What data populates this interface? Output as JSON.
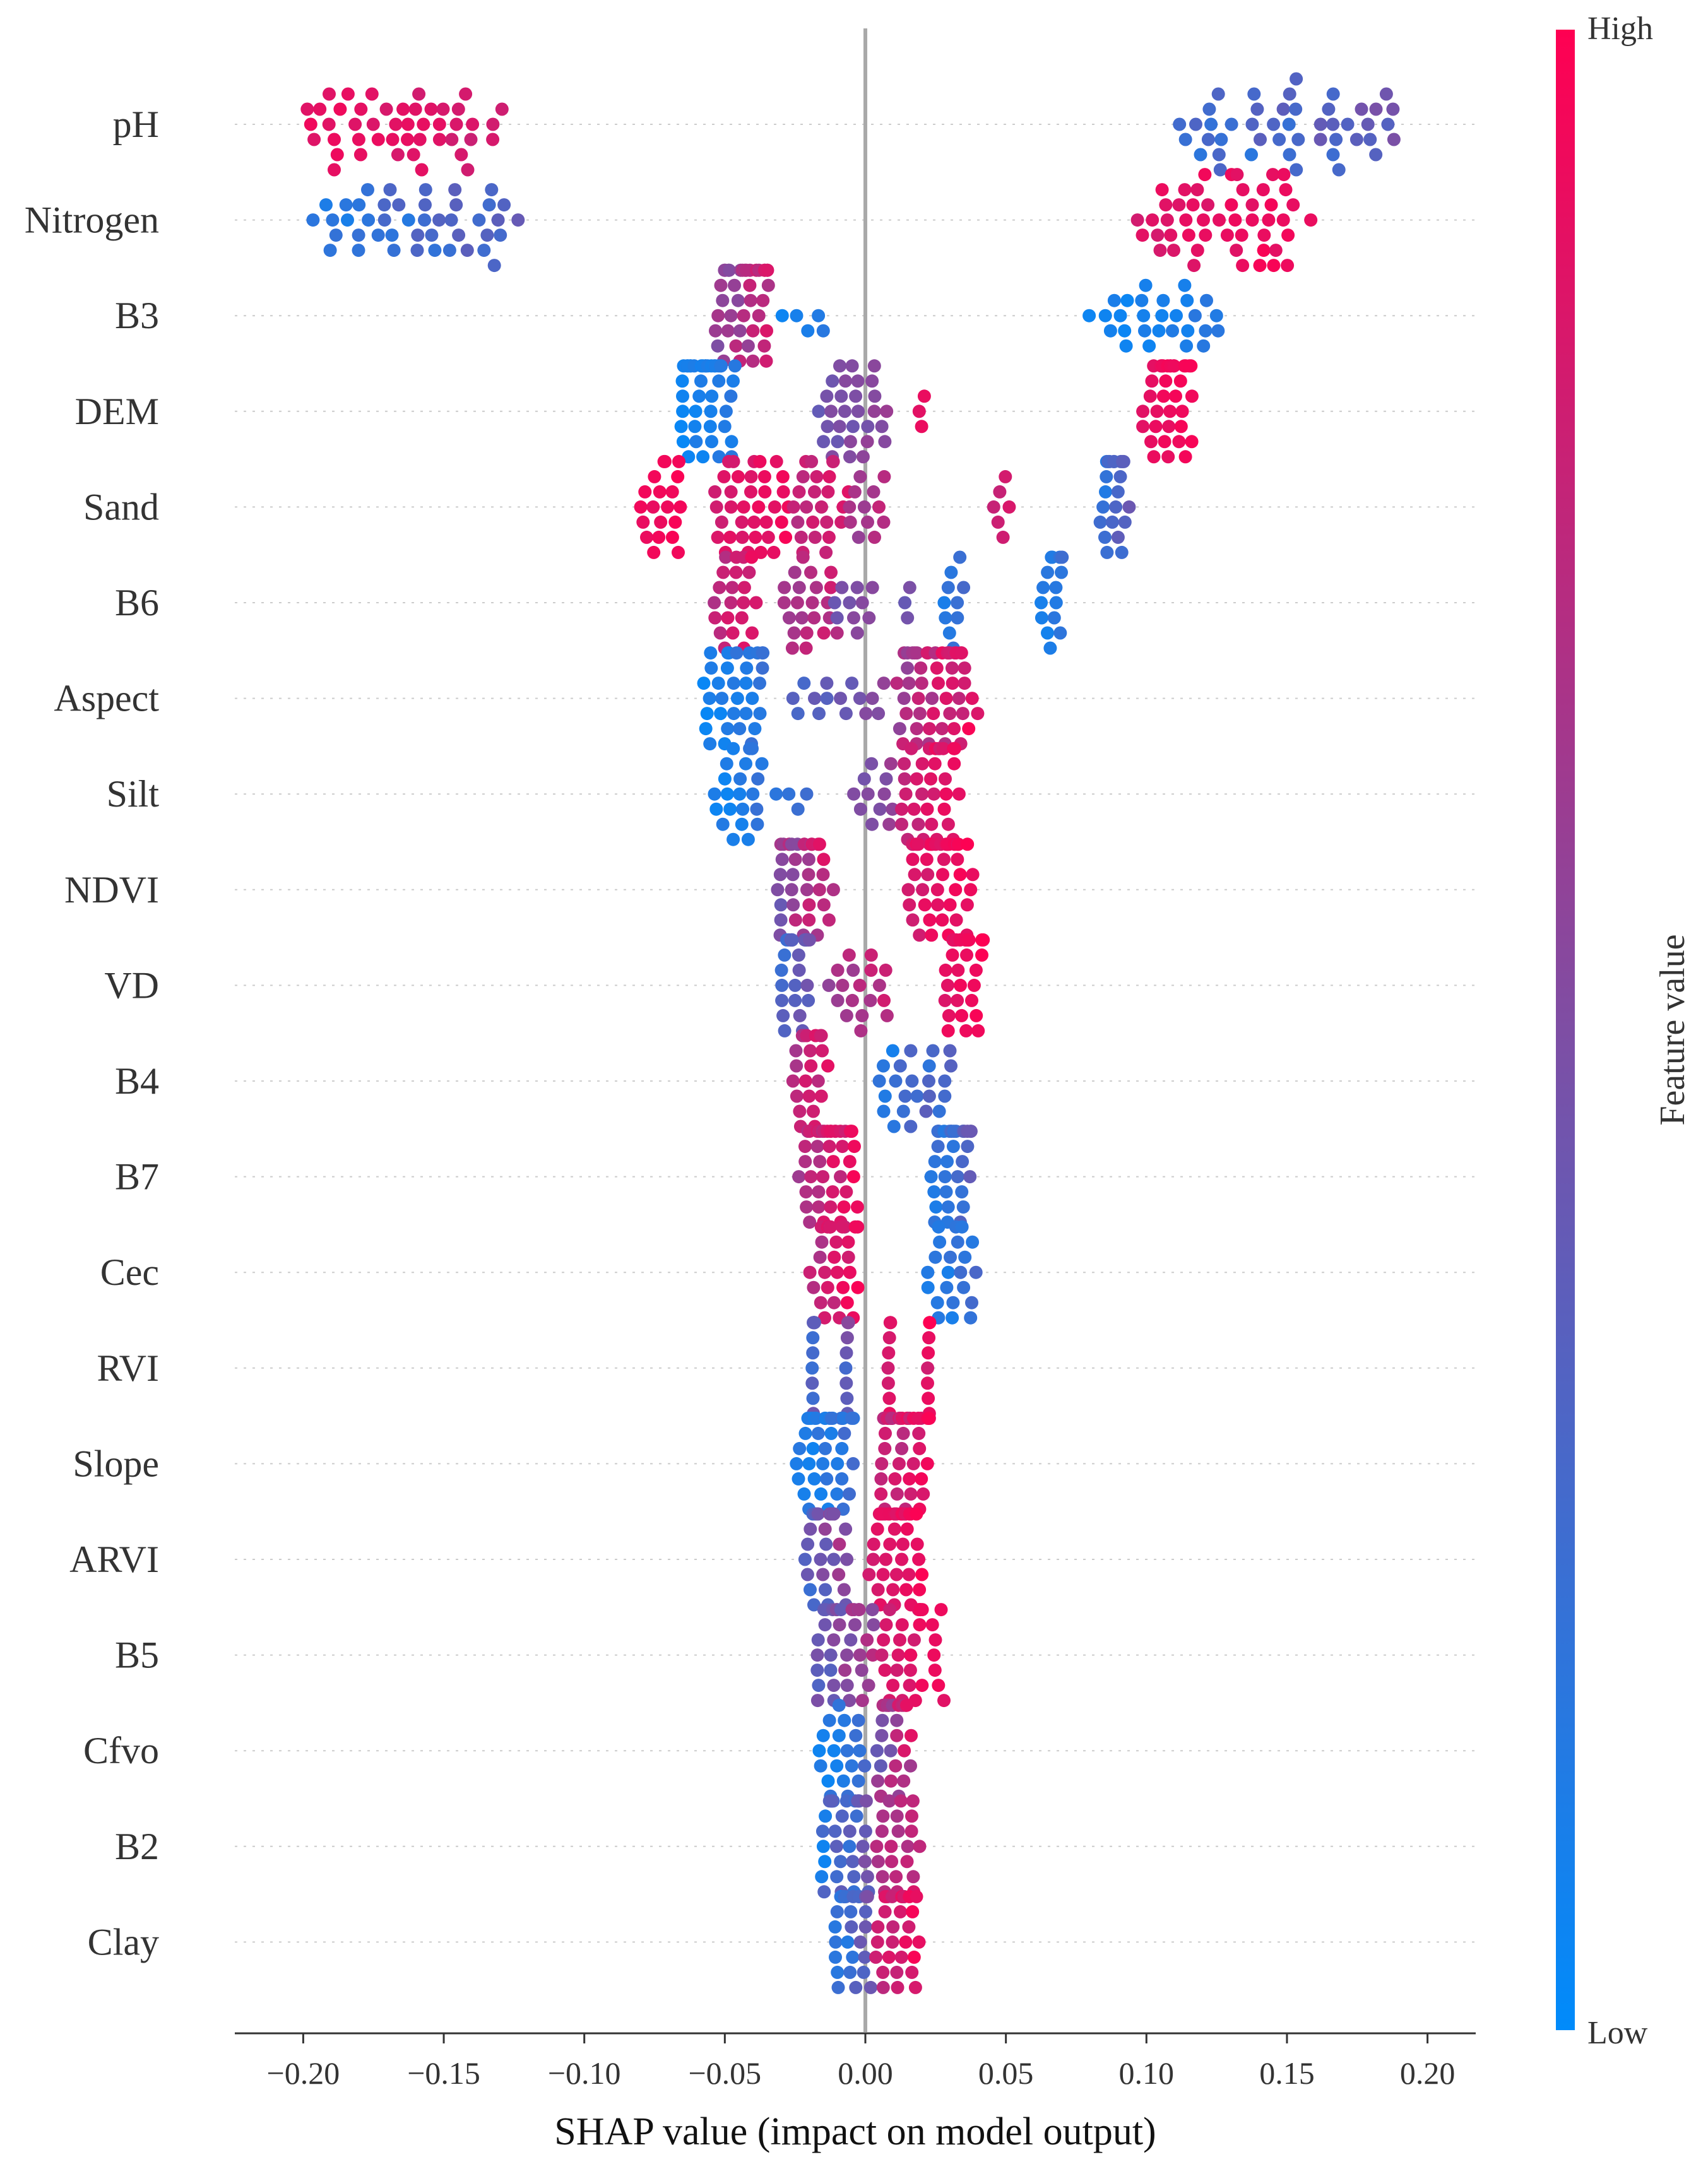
{
  "chart_data": {
    "type": "scatter",
    "subtype": "shap-beeswarm",
    "title": "",
    "xlabel": "SHAP value (impact on model output)",
    "ylabel": "",
    "xlim": [
      -0.225,
      0.22
    ],
    "xticks": [
      -0.2,
      -0.15,
      -0.1,
      -0.05,
      0.0,
      0.05,
      0.1,
      0.15,
      0.2
    ],
    "xtick_labels": [
      "−0.20",
      "−0.15",
      "−0.10",
      "−0.05",
      "0.00",
      "0.05",
      "0.10",
      "0.15",
      "0.20"
    ],
    "zero_line": 0.0,
    "grid": "dotted row lines",
    "colorbar": {
      "title": "Feature value",
      "high_label": "High",
      "low_label": "Low",
      "high_color": "#ff0d57",
      "mid_color": "#7e4ea4",
      "low_color": "#1e88e5"
    },
    "features": [
      {
        "name": "pH",
        "groups": [
          {
            "x0": -0.205,
            "x1": -0.127,
            "n": 46,
            "c0": 0.97,
            "c1": 0.78
          },
          {
            "x0": 0.108,
            "x1": 0.197,
            "n": 46,
            "c0": 0.1,
            "c1": 0.5
          }
        ]
      },
      {
        "name": "Nitrogen",
        "groups": [
          {
            "x0": -0.2,
            "x1": -0.119,
            "n": 44,
            "c0": 0.08,
            "c1": 0.42
          },
          {
            "x0": 0.095,
            "x1": 0.16,
            "n": 50,
            "c0": 0.82,
            "c1": 1.0
          }
        ]
      },
      {
        "name": "B3",
        "groups": [
          {
            "x0": -0.054,
            "x1": -0.032,
            "n": 40,
            "c0": 0.45,
            "c1": 0.9
          },
          {
            "x0": -0.03,
            "x1": -0.013,
            "n": 5,
            "c0": 0.05,
            "c1": 0.2
          },
          {
            "x0": 0.078,
            "x1": 0.131,
            "n": 28,
            "c0": 0.02,
            "c1": 0.18
          }
        ]
      },
      {
        "name": "DEM",
        "groups": [
          {
            "x0": -0.068,
            "x1": -0.046,
            "n": 42,
            "c0": 0.02,
            "c1": 0.18
          },
          {
            "x0": -0.018,
            "x1": 0.008,
            "n": 30,
            "c0": 0.35,
            "c1": 0.65
          },
          {
            "x0": 0.019,
            "x1": 0.021,
            "n": 3,
            "c0": 0.85,
            "c1": 0.95
          },
          {
            "x0": 0.098,
            "x1": 0.118,
            "n": 36,
            "c0": 0.88,
            "c1": 1.0
          }
        ]
      },
      {
        "name": "Sand",
        "groups": [
          {
            "x0": -0.08,
            "x1": -0.064,
            "n": 20,
            "c0": 0.9,
            "c1": 1.0
          },
          {
            "x0": -0.055,
            "x1": -0.026,
            "n": 36,
            "c0": 0.8,
            "c1": 0.98
          },
          {
            "x0": -0.027,
            "x1": -0.006,
            "n": 24,
            "c0": 0.7,
            "c1": 0.9
          },
          {
            "x0": -0.008,
            "x1": 0.008,
            "n": 12,
            "c0": 0.55,
            "c1": 0.8
          },
          {
            "x0": 0.045,
            "x1": 0.052,
            "n": 6,
            "c0": 0.75,
            "c1": 0.85
          },
          {
            "x0": 0.083,
            "x1": 0.094,
            "n": 22,
            "c0": 0.1,
            "c1": 0.45
          }
        ]
      },
      {
        "name": "B6",
        "groups": [
          {
            "x0": -0.055,
            "x1": -0.038,
            "n": 22,
            "c0": 0.65,
            "c1": 0.95
          },
          {
            "x0": -0.031,
            "x1": -0.009,
            "n": 22,
            "c0": 0.55,
            "c1": 0.85
          },
          {
            "x0": -0.012,
            "x1": 0.003,
            "n": 10,
            "c0": 0.4,
            "c1": 0.6
          },
          {
            "x0": 0.014,
            "x1": 0.016,
            "n": 3,
            "c0": 0.4,
            "c1": 0.5
          },
          {
            "x0": 0.027,
            "x1": 0.035,
            "n": 10,
            "c0": 0.1,
            "c1": 0.3
          },
          {
            "x0": 0.062,
            "x1": 0.071,
            "n": 16,
            "c0": 0.05,
            "c1": 0.25
          }
        ]
      },
      {
        "name": "Aspect",
        "groups": [
          {
            "x0": -0.059,
            "x1": -0.034,
            "n": 34,
            "c0": 0.02,
            "c1": 0.25
          },
          {
            "x0": -0.028,
            "x1": -0.004,
            "n": 10,
            "c0": 0.25,
            "c1": 0.5
          },
          {
            "x0": -0.002,
            "x1": 0.008,
            "n": 5,
            "c0": 0.45,
            "c1": 0.6
          },
          {
            "x0": 0.01,
            "x1": 0.04,
            "n": 50,
            "c0": 0.55,
            "c1": 1.0
          }
        ]
      },
      {
        "name": "Silt",
        "groups": [
          {
            "x0": -0.054,
            "x1": -0.036,
            "n": 22,
            "c0": 0.02,
            "c1": 0.25
          },
          {
            "x0": -0.032,
            "x1": -0.02,
            "n": 4,
            "c0": 0.1,
            "c1": 0.3
          },
          {
            "x0": -0.005,
            "x1": 0.012,
            "n": 12,
            "c0": 0.4,
            "c1": 0.65
          },
          {
            "x0": 0.011,
            "x1": 0.035,
            "n": 34,
            "c0": 0.7,
            "c1": 1.0
          }
        ]
      },
      {
        "name": "NDVI",
        "groups": [
          {
            "x0": -0.034,
            "x1": -0.011,
            "n": 36,
            "c0": 0.4,
            "c1": 0.95
          },
          {
            "x0": 0.013,
            "x1": 0.039,
            "n": 44,
            "c0": 0.8,
            "c1": 1.0
          }
        ]
      },
      {
        "name": "VD",
        "groups": [
          {
            "x0": -0.031,
            "x1": -0.019,
            "n": 26,
            "c0": 0.2,
            "c1": 0.5
          },
          {
            "x0": -0.014,
            "x1": 0.01,
            "n": 18,
            "c0": 0.55,
            "c1": 0.85
          },
          {
            "x0": 0.027,
            "x1": 0.043,
            "n": 30,
            "c0": 0.85,
            "c1": 1.0
          }
        ]
      },
      {
        "name": "B4",
        "groups": [
          {
            "x0": -0.027,
            "x1": -0.013,
            "n": 22,
            "c0": 0.6,
            "c1": 0.95
          },
          {
            "x0": 0.002,
            "x1": 0.033,
            "n": 24,
            "c0": 0.02,
            "c1": 0.45
          }
        ]
      },
      {
        "name": "B7",
        "groups": [
          {
            "x0": -0.024,
            "x1": -0.002,
            "n": 42,
            "c0": 0.6,
            "c1": 1.0
          },
          {
            "x0": 0.022,
            "x1": 0.039,
            "n": 34,
            "c0": 0.05,
            "c1": 0.45
          }
        ]
      },
      {
        "name": "Cec",
        "groups": [
          {
            "x0": -0.02,
            "x1": -0.001,
            "n": 30,
            "c0": 0.65,
            "c1": 1.0
          },
          {
            "x0": 0.021,
            "x1": 0.041,
            "n": 22,
            "c0": 0.02,
            "c1": 0.3
          }
        ]
      },
      {
        "name": "RVI",
        "groups": [
          {
            "x0": -0.019,
            "x1": -0.018,
            "n": 12,
            "c0": 0.15,
            "c1": 0.55
          },
          {
            "x0": -0.007,
            "x1": -0.006,
            "n": 8,
            "c0": 0.25,
            "c1": 0.55
          },
          {
            "x0": 0.008,
            "x1": 0.009,
            "n": 8,
            "c0": 0.75,
            "c1": 0.95
          },
          {
            "x0": 0.022,
            "x1": 0.023,
            "n": 8,
            "c0": 0.8,
            "c1": 1.0
          }
        ]
      },
      {
        "name": "Slope",
        "groups": [
          {
            "x0": -0.025,
            "x1": -0.003,
            "n": 40,
            "c0": 0.02,
            "c1": 0.3
          },
          {
            "x0": 0.003,
            "x1": 0.024,
            "n": 40,
            "c0": 0.65,
            "c1": 1.0
          }
        ]
      },
      {
        "name": "ARVI",
        "groups": [
          {
            "x0": -0.022,
            "x1": -0.006,
            "n": 28,
            "c0": 0.1,
            "c1": 0.75
          },
          {
            "x0": 0.0,
            "x1": 0.021,
            "n": 40,
            "c0": 0.8,
            "c1": 1.0
          }
        ]
      },
      {
        "name": "B5",
        "groups": [
          {
            "x0": -0.02,
            "x1": 0.004,
            "n": 36,
            "c0": 0.25,
            "c1": 0.75
          },
          {
            "x0": 0.004,
            "x1": 0.029,
            "n": 30,
            "c0": 0.75,
            "c1": 1.0
          }
        ]
      },
      {
        "name": "Cfvo",
        "groups": [
          {
            "x0": -0.019,
            "x1": 0.002,
            "n": 20,
            "c0": 0.02,
            "c1": 0.3
          },
          {
            "x0": 0.003,
            "x1": 0.017,
            "n": 28,
            "c0": 0.35,
            "c1": 0.95
          }
        ]
      },
      {
        "name": "B2",
        "groups": [
          {
            "x0": -0.018,
            "x1": 0.003,
            "n": 34,
            "c0": 0.02,
            "c1": 0.55
          },
          {
            "x0": 0.003,
            "x1": 0.02,
            "n": 22,
            "c0": 0.55,
            "c1": 0.95
          }
        ]
      },
      {
        "name": "Clay",
        "groups": [
          {
            "x0": -0.012,
            "x1": 0.003,
            "n": 30,
            "c0": 0.02,
            "c1": 0.5
          },
          {
            "x0": 0.003,
            "x1": 0.02,
            "n": 30,
            "c0": 0.7,
            "c1": 1.0
          }
        ]
      }
    ]
  }
}
